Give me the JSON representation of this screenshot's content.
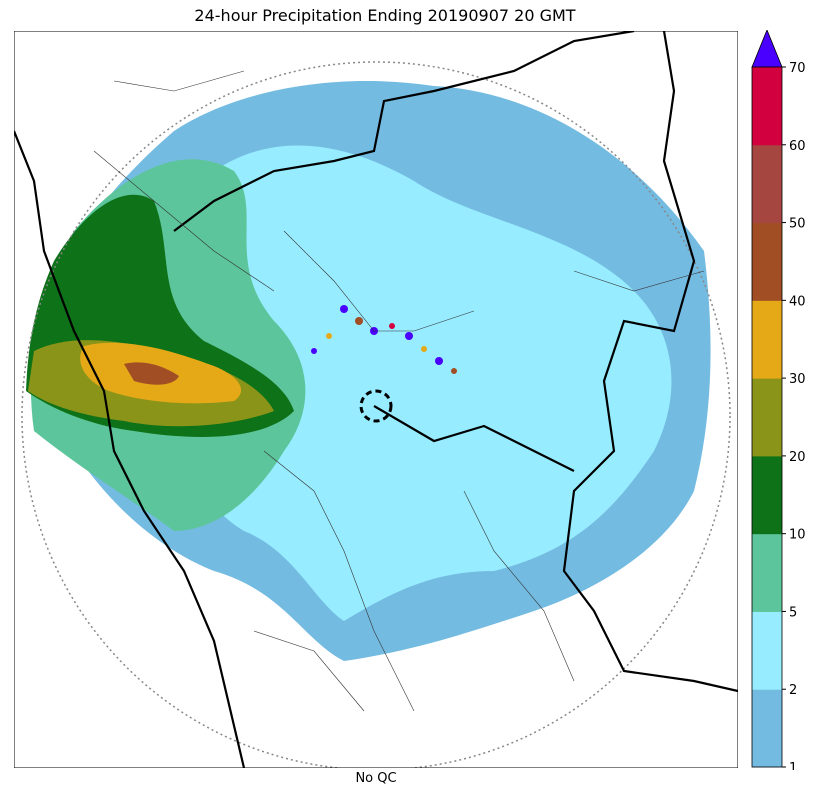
{
  "title": "24-hour Precipitation Ending 20190907 20 GMT",
  "xlabel": "No QC",
  "colorbar": {
    "levels": [
      "1",
      "2",
      "5",
      "10",
      "20",
      "30",
      "40",
      "50",
      "60",
      "70"
    ],
    "colors": [
      "#74bbe2",
      "#97edff",
      "#5cc59b",
      "#0e7219",
      "#8a9418",
      "#e5a918",
      "#a14e24",
      "#a54641",
      "#d3003f"
    ],
    "extend_color": "#4a00ff"
  },
  "map": {
    "radar_center": "dashed circle near center",
    "range_ring": "dotted circle",
    "colors": {
      "outside": "#ffffff",
      "border": "#000000",
      "district": "#333333",
      "ring": "#888888"
    }
  }
}
